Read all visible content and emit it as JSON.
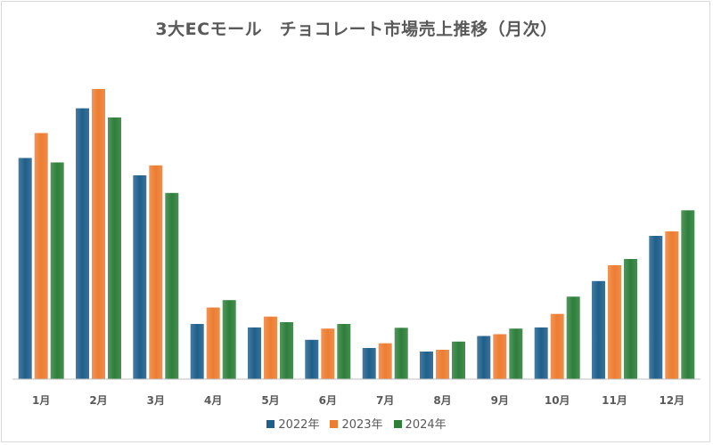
{
  "chart_data": {
    "type": "bar",
    "title": "3大ECモール　チョコレート市場売上推移（月次）",
    "xlabel": "",
    "ylabel": "",
    "categories": [
      "1月",
      "2月",
      "3月",
      "4月",
      "5月",
      "6月",
      "7月",
      "8月",
      "9月",
      "10月",
      "11月",
      "12月"
    ],
    "ylim": [
      0,
      100
    ],
    "grid": false,
    "legend_position": "bottom",
    "series": [
      {
        "name": "2022年",
        "color": "#1f5f8b",
        "values": [
          75.3,
          92.2,
          69.4,
          18.8,
          17.6,
          13.4,
          10.6,
          9.4,
          14.7,
          17.6,
          33.4,
          48.8
        ]
      },
      {
        "name": "2023年",
        "color": "#ed7d31",
        "values": [
          83.8,
          98.8,
          72.8,
          24.4,
          21.3,
          17.2,
          12.2,
          10.0,
          15.3,
          22.2,
          38.8,
          50.3
        ]
      },
      {
        "name": "2024年",
        "color": "#2d7f3a",
        "values": [
          73.8,
          89.1,
          63.4,
          26.9,
          19.4,
          18.8,
          17.5,
          12.8,
          17.2,
          28.1,
          40.9,
          57.5
        ]
      }
    ]
  }
}
